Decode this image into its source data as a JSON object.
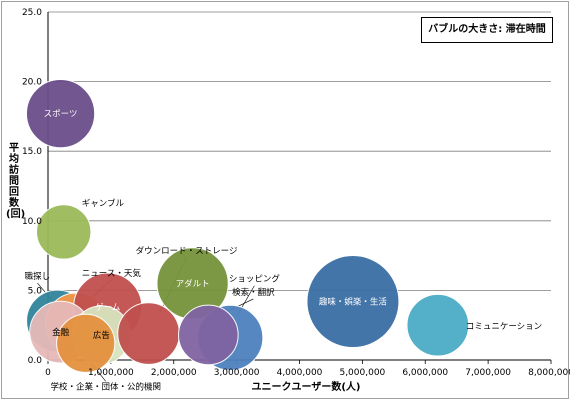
{
  "chart_data": {
    "type": "bubble",
    "size_label": "バブルの大きさ: 滞在時間",
    "xlabel": "ユニークユーザー数(人)",
    "ylabel": "平均訪問回数(回)",
    "xlim": [
      0,
      8000000
    ],
    "ylim": [
      0,
      25
    ],
    "x_ticks": [
      "0",
      "1,000,000",
      "2,000,000",
      "3,000,000",
      "4,000,000",
      "5,000,000",
      "6,000,000",
      "7,000,000",
      "8,000,000"
    ],
    "y_ticks": [
      "0.0",
      "5.0",
      "10.0",
      "15.0",
      "20.0",
      "25.0"
    ],
    "grid": "horizontal",
    "series": [
      {
        "name": "スポーツ",
        "x": 200000,
        "y": 17.7,
        "size": 0.55,
        "color": "#6b4d8a",
        "label_inside": true
      },
      {
        "name": "ギャンブル",
        "x": 250000,
        "y": 9.2,
        "size": 0.35,
        "color": "#9bbb59",
        "label_inside": false
      },
      {
        "name": "職探し",
        "x": 150000,
        "y": 2.8,
        "size": 0.45,
        "color": "#31849b",
        "label_inside": false
      },
      {
        "name": "ニュース・天気",
        "x": 450000,
        "y": 2.6,
        "size": 0.45,
        "color": "#f79646",
        "label_inside": false
      },
      {
        "name": "ゲーム",
        "x": 950000,
        "y": 3.8,
        "size": 0.55,
        "color": "#c0504d",
        "label_inside": true
      },
      {
        "name": "金融",
        "x": 200000,
        "y": 2.0,
        "size": 0.45,
        "color": "#e6b9b8",
        "label_inside": true
      },
      {
        "name": "広告",
        "x": 850000,
        "y": 1.8,
        "size": 0.4,
        "color": "#d7e4bd",
        "label_inside": true
      },
      {
        "name": "学校・企業・団体・公的機関",
        "x": 600000,
        "y": 1.2,
        "size": 0.4,
        "color": "#e4913e",
        "label_inside": false
      },
      {
        "name": "ダウンロード・ストレージ",
        "x": 1600000,
        "y": 1.9,
        "size": 0.45,
        "color": "#c0504d",
        "label_inside": false
      },
      {
        "name": "アダルト",
        "x": 2300000,
        "y": 5.5,
        "size": 0.6,
        "color": "#77933c",
        "label_inside": true
      },
      {
        "name": "ショッピング",
        "x": 2900000,
        "y": 1.6,
        "size": 0.5,
        "color": "#4f81bd",
        "label_inside": false
      },
      {
        "name": "検索・翻訳",
        "x": 2550000,
        "y": 1.8,
        "size": 0.42,
        "color": "#8064a2",
        "label_inside": false
      },
      {
        "name": "趣味・娯楽・生活",
        "x": 4850000,
        "y": 4.2,
        "size": 1.0,
        "color": "#3a6ea5",
        "label_inside": true
      },
      {
        "name": "コミュニケーション",
        "x": 6200000,
        "y": 2.5,
        "size": 0.45,
        "color": "#4bacc6",
        "label_inside": false
      }
    ]
  }
}
